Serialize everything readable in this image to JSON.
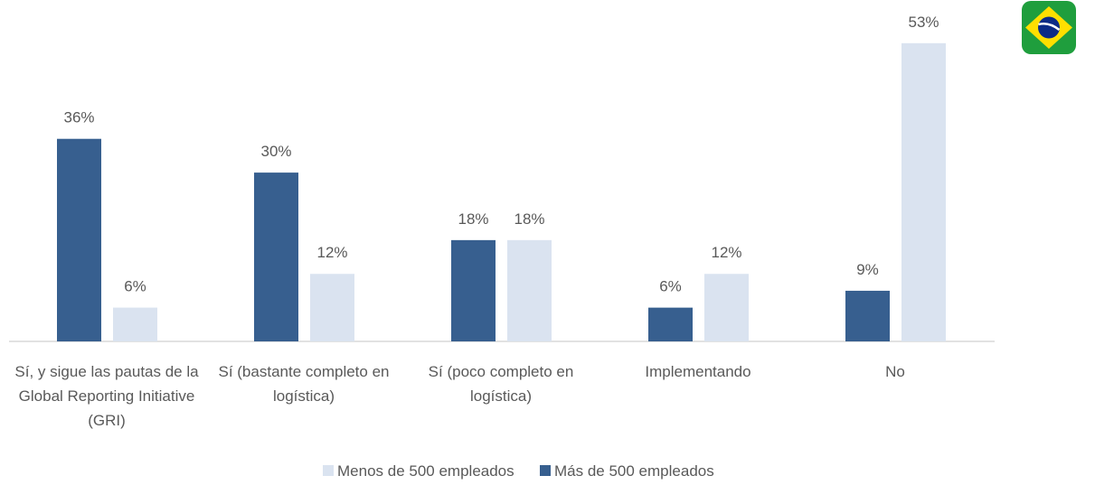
{
  "chart_data": {
    "type": "bar",
    "categories": [
      "Sí, y sigue las pautas de la Global Reporting Initiative (GRI)",
      "Sí (bastante completo en logística)",
      "Sí (poco completo en logística)",
      "Implementando",
      "No"
    ],
    "series": [
      {
        "name": "Más de 500 empleados",
        "color": "#375f8f",
        "values": [
          36,
          30,
          18,
          6,
          9
        ],
        "value_labels": [
          "36%",
          "30%",
          "18%",
          "6%",
          "9%"
        ]
      },
      {
        "name": "Menos de 500 empleados",
        "color": "#dae3f0",
        "values": [
          6,
          12,
          18,
          12,
          53
        ],
        "value_labels": [
          "6%",
          "12%",
          "18%",
          "12%",
          "53%"
        ]
      }
    ],
    "legend": "bottom"
  }
}
